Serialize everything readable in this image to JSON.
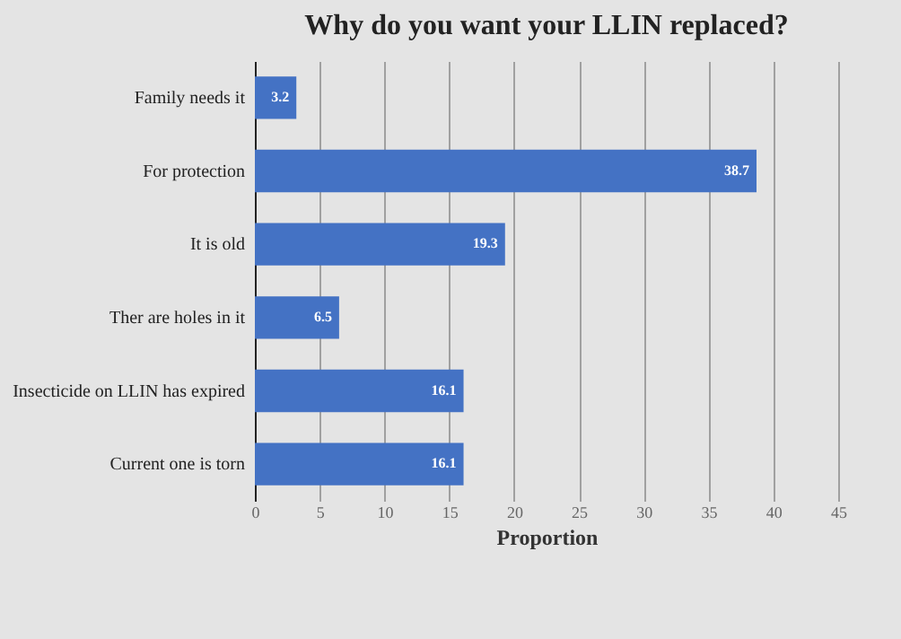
{
  "chart_data": {
    "type": "bar",
    "orientation": "horizontal",
    "title": "Why do you want your LLIN replaced?",
    "xlabel": "Proportion",
    "categories": [
      "Family needs it",
      "For protection",
      "It is old",
      "Ther are holes in it",
      "Insecticide on LLIN has expired",
      "Current one is torn"
    ],
    "values": [
      3.2,
      38.7,
      19.3,
      6.5,
      16.1,
      16.1
    ],
    "color": "#4472c4",
    "xlim": [
      0,
      45
    ],
    "xticks": [
      0,
      5,
      10,
      15,
      20,
      25,
      30,
      35,
      40,
      45
    ],
    "grid": "x",
    "data_labels": true
  }
}
